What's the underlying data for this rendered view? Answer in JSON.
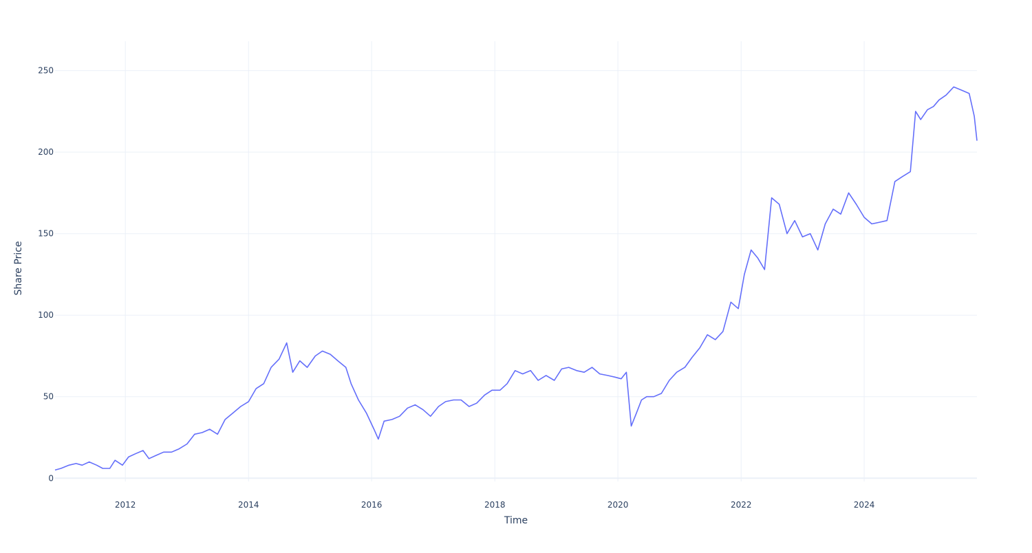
{
  "chart_data": {
    "type": "line",
    "xlabel": "Time",
    "ylabel": "Share Price",
    "x_range": [
      "2010-11-10",
      "2025-10-31"
    ],
    "ylim": [
      -2,
      268
    ],
    "grid": true,
    "legend": "none",
    "x_ticks": [
      {
        "date": "2012-01-01",
        "label": "2012"
      },
      {
        "date": "2014-01-01",
        "label": "2014"
      },
      {
        "date": "2016-01-01",
        "label": "2016"
      },
      {
        "date": "2018-01-01",
        "label": "2018"
      },
      {
        "date": "2020-01-01",
        "label": "2020"
      },
      {
        "date": "2022-01-01",
        "label": "2022"
      },
      {
        "date": "2024-01-01",
        "label": "2024"
      }
    ],
    "y_ticks": [
      {
        "value": 0,
        "label": "0"
      },
      {
        "value": 50,
        "label": "50"
      },
      {
        "value": 100,
        "label": "100"
      },
      {
        "value": 150,
        "label": "150"
      },
      {
        "value": 200,
        "label": "200"
      },
      {
        "value": 250,
        "label": "250"
      }
    ],
    "colors": {
      "line": "#636efa",
      "grid": "#ebf0f8",
      "zero_line": "#ebf0f8",
      "text": "#2a3f5f",
      "background": "#ffffff"
    },
    "series": [
      {
        "x": [
          "2010-11-10",
          "2010-12-15",
          "2011-02-01",
          "2011-03-15",
          "2011-04-20",
          "2011-06-01",
          "2011-07-15",
          "2011-08-20",
          "2011-10-01",
          "2011-11-01",
          "2011-12-15",
          "2012-01-20",
          "2012-03-01",
          "2012-04-15",
          "2012-05-20",
          "2012-07-01",
          "2012-08-15",
          "2012-10-01",
          "2012-11-15",
          "2013-01-01",
          "2013-02-15",
          "2013-04-01",
          "2013-05-15",
          "2013-07-01",
          "2013-08-15",
          "2013-10-01",
          "2013-11-15",
          "2014-01-01",
          "2014-02-15",
          "2014-04-01",
          "2014-05-15",
          "2014-07-01",
          "2014-08-15",
          "2014-09-20",
          "2014-11-01",
          "2014-12-15",
          "2015-02-01",
          "2015-03-15",
          "2015-05-01",
          "2015-06-15",
          "2015-08-01",
          "2015-09-01",
          "2015-10-15",
          "2015-12-01",
          "2016-01-15",
          "2016-02-10",
          "2016-03-15",
          "2016-05-01",
          "2016-06-15",
          "2016-08-01",
          "2016-09-15",
          "2016-11-01",
          "2016-12-15",
          "2017-02-01",
          "2017-03-15",
          "2017-05-01",
          "2017-06-15",
          "2017-08-01",
          "2017-09-15",
          "2017-11-01",
          "2017-12-15",
          "2018-02-01",
          "2018-03-15",
          "2018-05-01",
          "2018-06-15",
          "2018-08-01",
          "2018-09-15",
          "2018-11-01",
          "2018-12-20",
          "2019-02-01",
          "2019-03-15",
          "2019-05-01",
          "2019-06-15",
          "2019-08-01",
          "2019-09-15",
          "2019-11-01",
          "2019-12-15",
          "2020-01-20",
          "2020-02-20",
          "2020-03-20",
          "2020-04-20",
          "2020-05-20",
          "2020-06-20",
          "2020-08-01",
          "2020-09-15",
          "2020-11-01",
          "2020-12-15",
          "2021-02-01",
          "2021-03-15",
          "2021-05-01",
          "2021-06-15",
          "2021-08-01",
          "2021-09-15",
          "2021-11-01",
          "2021-12-15",
          "2022-01-20",
          "2022-03-01",
          "2022-04-10",
          "2022-05-20",
          "2022-07-01",
          "2022-08-15",
          "2022-09-30",
          "2022-11-15",
          "2022-12-31",
          "2023-02-15",
          "2023-04-01",
          "2023-05-15",
          "2023-07-01",
          "2023-08-15",
          "2023-10-01",
          "2023-11-15",
          "2024-01-01",
          "2024-02-15",
          "2024-04-01",
          "2024-05-15",
          "2024-07-01",
          "2024-08-15",
          "2024-10-01",
          "2024-11-01",
          "2024-12-01",
          "2025-01-10",
          "2025-02-15",
          "2025-03-20",
          "2025-05-01",
          "2025-06-15",
          "2025-08-01",
          "2025-09-15",
          "2025-10-15",
          "2025-10-31"
        ],
        "y": [
          5,
          6,
          8,
          9,
          8,
          10,
          8,
          6,
          6,
          11,
          8,
          13,
          15,
          17,
          12,
          14,
          16,
          16,
          18,
          21,
          27,
          28,
          30,
          27,
          36,
          40,
          44,
          47,
          55,
          58,
          68,
          73,
          83,
          65,
          72,
          68,
          75,
          78,
          76,
          72,
          68,
          58,
          48,
          40,
          30,
          24,
          35,
          36,
          38,
          43,
          45,
          42,
          38,
          44,
          47,
          48,
          48,
          44,
          46,
          51,
          54,
          54,
          58,
          66,
          64,
          66,
          60,
          63,
          60,
          67,
          68,
          66,
          65,
          68,
          64,
          63,
          62,
          61,
          65,
          32,
          40,
          48,
          50,
          50,
          52,
          60,
          65,
          68,
          74,
          80,
          88,
          85,
          90,
          108,
          104,
          125,
          140,
          135,
          128,
          172,
          168,
          150,
          158,
          148,
          150,
          140,
          156,
          165,
          162,
          175,
          168,
          160,
          156,
          157,
          158,
          182,
          185,
          188,
          225,
          220,
          226,
          228,
          232,
          235,
          240,
          238,
          236,
          222,
          207
        ]
      }
    ]
  }
}
